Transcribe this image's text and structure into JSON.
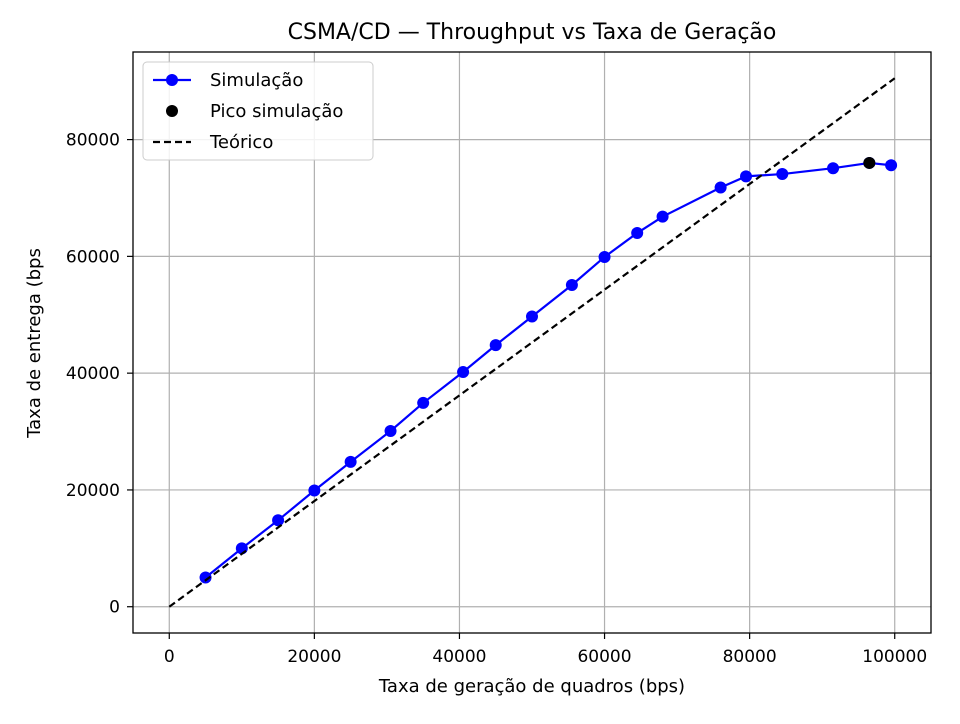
{
  "chart_data": {
    "type": "line",
    "title": "CSMA/CD — Throughput vs Taxa de Geração",
    "xlabel": "Taxa de geração de quadros (bps)",
    "ylabel": "Taxa de entrega (bps",
    "xlim": [
      -5000,
      105000
    ],
    "ylim": [
      -4500,
      95000
    ],
    "xticks": [
      0,
      20000,
      40000,
      60000,
      80000,
      100000
    ],
    "yticks": [
      0,
      20000,
      40000,
      60000,
      80000
    ],
    "grid": true,
    "legend_position": "top-left",
    "series": [
      {
        "name": "Simulação",
        "kind": "line-markers",
        "color": "#0000ff",
        "x": [
          5000,
          10000,
          15000,
          20000,
          25000,
          30500,
          35000,
          40500,
          45000,
          50000,
          55500,
          60000,
          64500,
          68000,
          76000,
          79500,
          84500,
          91500,
          96500,
          99500
        ],
        "y": [
          5000,
          10000,
          14800,
          19900,
          24800,
          30100,
          34900,
          40200,
          44800,
          49700,
          55100,
          59900,
          64000,
          66800,
          71800,
          73700,
          74100,
          75100,
          76000,
          75600
        ]
      },
      {
        "name": "Pico simulação",
        "kind": "markers",
        "color": "#000000",
        "x": [
          96500
        ],
        "y": [
          76000
        ]
      },
      {
        "name": "Teórico",
        "kind": "dashed-line",
        "color": "#000000",
        "x": [
          0,
          100000
        ],
        "y": [
          0,
          90500
        ]
      }
    ]
  }
}
